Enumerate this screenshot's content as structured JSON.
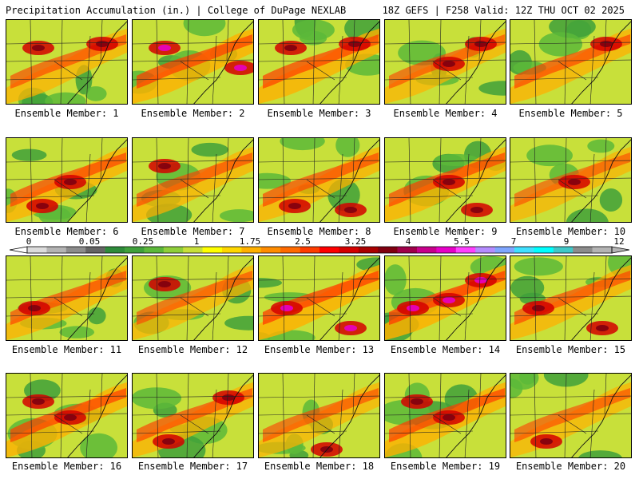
{
  "header": {
    "title": "Precipitation Accumulation (in.) | College of DuPage NEXLAB",
    "valid": "18Z GEFS | F258 Valid: 12Z THU OCT 02 2025"
  },
  "members": [
    {
      "label": "Ensemble Member: 1",
      "hot": [
        "ne",
        "nw"
      ],
      "wet": 0.55
    },
    {
      "label": "Ensemble Member: 2",
      "hot": [
        "nw",
        "e"
      ],
      "wet": 0.75
    },
    {
      "label": "Ensemble Member: 3",
      "hot": [
        "nw",
        "ne"
      ],
      "wet": 0.7
    },
    {
      "label": "Ensemble Member: 4",
      "hot": [
        "c",
        "ne"
      ],
      "wet": 0.5
    },
    {
      "label": "Ensemble Member: 5",
      "hot": [
        "ne"
      ],
      "wet": 0.6
    },
    {
      "label": "Ensemble Member: 6",
      "hot": [
        "sw",
        "c"
      ],
      "wet": 0.65
    },
    {
      "label": "Ensemble Member: 7",
      "hot": [
        "nw"
      ],
      "wet": 0.55
    },
    {
      "label": "Ensemble Member: 8",
      "hot": [
        "sw",
        "se"
      ],
      "wet": 0.6
    },
    {
      "label": "Ensemble Member: 9",
      "hot": [
        "c",
        "se"
      ],
      "wet": 0.65
    },
    {
      "label": "Ensemble Member: 10",
      "hot": [
        "c"
      ],
      "wet": 0.45
    },
    {
      "label": "Ensemble Member: 11",
      "hot": [
        "w"
      ],
      "wet": 0.6
    },
    {
      "label": "Ensemble Member: 12",
      "hot": [
        "nw"
      ],
      "wet": 0.5
    },
    {
      "label": "Ensemble Member: 13",
      "hot": [
        "w",
        "se"
      ],
      "wet": 0.8
    },
    {
      "label": "Ensemble Member: 14",
      "hot": [
        "w",
        "ne",
        "c"
      ],
      "wet": 0.85
    },
    {
      "label": "Ensemble Member: 15",
      "hot": [
        "w",
        "se"
      ],
      "wet": 0.6
    },
    {
      "label": "Ensemble Member: 16",
      "hot": [
        "c",
        "nw"
      ],
      "wet": 0.7
    },
    {
      "label": "Ensemble Member: 17",
      "hot": [
        "sw",
        "ne"
      ],
      "wet": 0.6
    },
    {
      "label": "Ensemble Member: 18",
      "hot": [
        "s"
      ],
      "wet": 0.5
    },
    {
      "label": "Ensemble Member: 19",
      "hot": [
        "nw",
        "c"
      ],
      "wet": 0.7
    },
    {
      "label": "Ensemble Member: 20",
      "hot": [
        "sw"
      ],
      "wet": 0.5
    }
  ],
  "colorbar": {
    "ticks": [
      "0",
      "0.05",
      "0.25",
      "1",
      "1.75",
      "2.5",
      "3.25",
      "4",
      "5.5",
      "7",
      "9",
      "12"
    ],
    "colors": [
      "#dcdcdc",
      "#b4b4b4",
      "#8c8c8c",
      "#646464",
      "#2e8b3a",
      "#3fa03b",
      "#5cb83a",
      "#8fcf3a",
      "#c8e03a",
      "#ffff00",
      "#ffd700",
      "#ffb000",
      "#ff8c00",
      "#ff6a00",
      "#ff3c00",
      "#ff0000",
      "#d40000",
      "#aa0000",
      "#800010",
      "#a0004a",
      "#c8008c",
      "#e600c8",
      "#ff40ff",
      "#b48cff",
      "#7fa6ff",
      "#40e0ff",
      "#00ffff",
      "#40c8c8",
      "#8c8c8c",
      "#b4b4b4"
    ]
  }
}
